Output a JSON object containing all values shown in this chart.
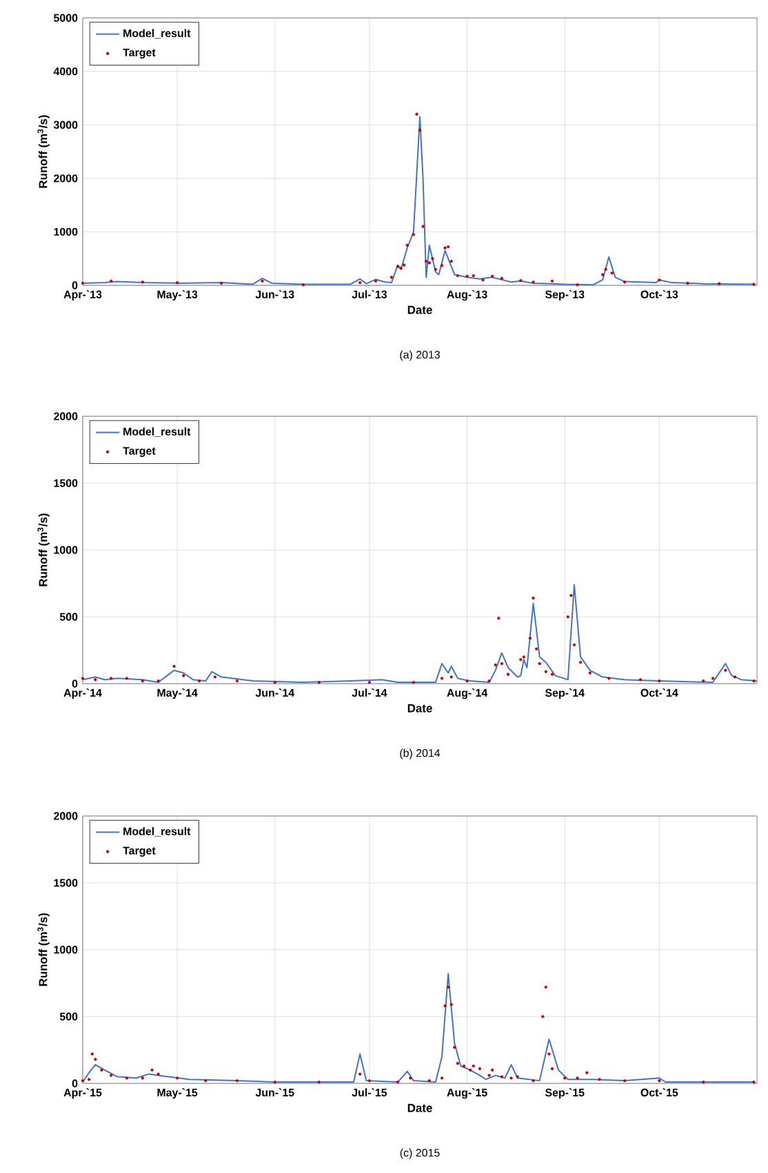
{
  "chart_data": [
    {
      "type": "line",
      "xlabel": "Date",
      "ylabel": "Runoff (m$^{3}$/s)",
      "annotations": [
        "(a) 2013"
      ],
      "xlim": [
        "2013-04-01",
        "2013-11-01"
      ],
      "xticks": [
        {
          "value": "2013-04-01",
          "label": "Apr-`13"
        },
        {
          "value": "2013-05-01",
          "label": "May-`13"
        },
        {
          "value": "2013-06-01",
          "label": "Jun-`13"
        },
        {
          "value": "2013-07-01",
          "label": "Jul-`13"
        },
        {
          "value": "2013-08-01",
          "label": "Aug-`13"
        },
        {
          "value": "2013-09-01",
          "label": "Sep-`13"
        },
        {
          "value": "2013-10-01",
          "label": "Oct-`13"
        }
      ],
      "ylim": [
        0,
        5000
      ],
      "yticks": [
        0,
        1000,
        2000,
        3000,
        4000,
        5000
      ],
      "grid": true,
      "legend": "top left",
      "series": [
        {
          "name": "Model_result",
          "type": "line",
          "color": "#4472c4",
          "marker": "none",
          "line_style": "solid",
          "x": [
            "2013-04-01",
            "2013-04-08",
            "2013-04-12",
            "2013-04-20",
            "2013-05-01",
            "2013-05-15",
            "2013-05-25",
            "2013-05-28",
            "2013-05-31",
            "2013-06-10",
            "2013-06-25",
            "2013-06-28",
            "2013-06-30",
            "2013-07-03",
            "2013-07-06",
            "2013-07-08",
            "2013-07-10",
            "2013-07-11",
            "2013-07-13",
            "2013-07-15",
            "2013-07-17",
            "2013-07-18",
            "2013-07-19",
            "2013-07-20",
            "2013-07-21",
            "2013-07-22",
            "2013-07-23",
            "2013-07-25",
            "2013-07-26",
            "2013-07-28",
            "2013-08-01",
            "2013-08-05",
            "2013-08-09",
            "2013-08-15",
            "2013-08-18",
            "2013-08-22",
            "2013-08-28",
            "2013-09-01",
            "2013-09-10",
            "2013-09-13",
            "2013-09-15",
            "2013-09-17",
            "2013-09-20",
            "2013-09-30",
            "2013-10-01",
            "2013-10-05",
            "2013-10-15",
            "2013-10-31"
          ],
          "values": [
            40,
            50,
            70,
            50,
            40,
            50,
            20,
            130,
            40,
            20,
            20,
            120,
            30,
            110,
            60,
            50,
            380,
            300,
            700,
            1000,
            3150,
            2000,
            150,
            750,
            500,
            250,
            200,
            650,
            500,
            200,
            150,
            120,
            150,
            60,
            80,
            40,
            30,
            20,
            10,
            100,
            530,
            150,
            70,
            50,
            100,
            50,
            30,
            20
          ]
        },
        {
          "name": "Target",
          "type": "scatter",
          "color": "#c00000",
          "marker": "circle",
          "x": [
            "2013-04-01",
            "2013-04-10",
            "2013-04-20",
            "2013-05-01",
            "2013-05-15",
            "2013-05-28",
            "2013-06-10",
            "2013-06-28",
            "2013-07-03",
            "2013-07-08",
            "2013-07-10",
            "2013-07-11",
            "2013-07-12",
            "2013-07-13",
            "2013-07-15",
            "2013-07-16",
            "2013-07-17",
            "2013-07-18",
            "2013-07-19",
            "2013-07-20",
            "2013-07-21",
            "2013-07-22",
            "2013-07-24",
            "2013-07-25",
            "2013-07-26",
            "2013-07-27",
            "2013-07-29",
            "2013-08-01",
            "2013-08-03",
            "2013-08-06",
            "2013-08-09",
            "2013-08-12",
            "2013-08-18",
            "2013-08-22",
            "2013-08-28",
            "2013-09-05",
            "2013-09-13",
            "2013-09-14",
            "2013-09-16",
            "2013-09-20",
            "2013-10-01",
            "2013-10-10",
            "2013-10-20",
            "2013-10-31"
          ],
          "values": [
            40,
            80,
            60,
            50,
            40,
            80,
            10,
            50,
            80,
            150,
            350,
            320,
            380,
            750,
            950,
            3200,
            2900,
            1100,
            450,
            420,
            500,
            300,
            370,
            700,
            720,
            450,
            180,
            170,
            180,
            100,
            170,
            130,
            90,
            60,
            80,
            10,
            200,
            300,
            230,
            60,
            100,
            40,
            30,
            20
          ]
        }
      ]
    },
    {
      "type": "line",
      "xlabel": "Date",
      "ylabel": "Runoff (m$^{3}$/s)",
      "annotations": [
        "(b) 2014"
      ],
      "xlim": [
        "2014-04-01",
        "2014-11-01"
      ],
      "xticks": [
        {
          "value": "2014-04-01",
          "label": "Apr-`14"
        },
        {
          "value": "2014-05-01",
          "label": "May-`14"
        },
        {
          "value": "2014-06-01",
          "label": "Jun-`14"
        },
        {
          "value": "2014-07-01",
          "label": "Jul-`14"
        },
        {
          "value": "2014-08-01",
          "label": "Aug-`14"
        },
        {
          "value": "2014-09-01",
          "label": "Sep-`14"
        },
        {
          "value": "2014-10-01",
          "label": "Oct-`14"
        }
      ],
      "ylim": [
        0,
        2000
      ],
      "yticks": [
        0,
        500,
        1000,
        1500,
        2000
      ],
      "grid": true,
      "legend": "top left",
      "series": [
        {
          "name": "Model_result",
          "type": "line",
          "color": "#4472c4",
          "marker": "none",
          "line_style": "solid",
          "x": [
            "2014-04-01",
            "2014-04-05",
            "2014-04-08",
            "2014-04-12",
            "2014-04-20",
            "2014-04-25",
            "2014-04-30",
            "2014-05-03",
            "2014-05-06",
            "2014-05-10",
            "2014-05-12",
            "2014-05-15",
            "2014-05-25",
            "2014-06-10",
            "2014-06-25",
            "2014-07-05",
            "2014-07-10",
            "2014-07-22",
            "2014-07-24",
            "2014-07-26",
            "2014-07-27",
            "2014-07-29",
            "2014-08-02",
            "2014-08-08",
            "2014-08-10",
            "2014-08-12",
            "2014-08-14",
            "2014-08-17",
            "2014-08-18",
            "2014-08-19",
            "2014-08-20",
            "2014-08-22",
            "2014-08-24",
            "2014-08-26",
            "2014-08-29",
            "2014-09-02",
            "2014-09-04",
            "2014-09-06",
            "2014-09-09",
            "2014-09-13",
            "2014-09-20",
            "2014-10-01",
            "2014-10-18",
            "2014-10-22",
            "2014-10-24",
            "2014-10-27",
            "2014-11-01"
          ],
          "values": [
            30,
            50,
            30,
            40,
            30,
            10,
            100,
            80,
            30,
            20,
            90,
            50,
            20,
            10,
            20,
            30,
            10,
            10,
            150,
            80,
            130,
            40,
            20,
            10,
            100,
            230,
            120,
            50,
            60,
            180,
            120,
            600,
            200,
            160,
            60,
            30,
            740,
            200,
            100,
            50,
            30,
            20,
            10,
            150,
            60,
            30,
            20
          ]
        },
        {
          "name": "Target",
          "type": "scatter",
          "color": "#c00000",
          "marker": "circle",
          "x": [
            "2014-04-01",
            "2014-04-05",
            "2014-04-10",
            "2014-04-15",
            "2014-04-20",
            "2014-04-25",
            "2014-04-30",
            "2014-05-03",
            "2014-05-08",
            "2014-05-13",
            "2014-05-20",
            "2014-06-01",
            "2014-06-15",
            "2014-07-01",
            "2014-07-15",
            "2014-07-24",
            "2014-07-27",
            "2014-08-01",
            "2014-08-08",
            "2014-08-10",
            "2014-08-11",
            "2014-08-12",
            "2014-08-14",
            "2014-08-18",
            "2014-08-19",
            "2014-08-21",
            "2014-08-22",
            "2014-08-23",
            "2014-08-24",
            "2014-08-26",
            "2014-08-28",
            "2014-09-02",
            "2014-09-03",
            "2014-09-04",
            "2014-09-06",
            "2014-09-09",
            "2014-09-15",
            "2014-09-25",
            "2014-10-01",
            "2014-10-15",
            "2014-10-18",
            "2014-10-22",
            "2014-10-25",
            "2014-10-31"
          ],
          "values": [
            40,
            30,
            40,
            40,
            20,
            20,
            130,
            60,
            20,
            50,
            20,
            10,
            10,
            10,
            10,
            40,
            50,
            20,
            20,
            140,
            490,
            150,
            70,
            180,
            200,
            340,
            640,
            260,
            150,
            90,
            70,
            500,
            660,
            290,
            160,
            80,
            40,
            30,
            20,
            20,
            40,
            100,
            50,
            20
          ]
        }
      ]
    },
    {
      "type": "line",
      "xlabel": "Date",
      "ylabel": "Runoff (m$^{3}$/s)",
      "annotations": [
        "(c) 2015"
      ],
      "xlim": [
        "2015-04-01",
        "2015-11-01"
      ],
      "xticks": [
        {
          "value": "2015-04-01",
          "label": "Apr-`15"
        },
        {
          "value": "2015-05-01",
          "label": "May-`15"
        },
        {
          "value": "2015-06-01",
          "label": "Jun-`15"
        },
        {
          "value": "2015-07-01",
          "label": "Jul-`15"
        },
        {
          "value": "2015-08-01",
          "label": "Aug-`15"
        },
        {
          "value": "2015-09-01",
          "label": "Sep-`15"
        },
        {
          "value": "2015-10-01",
          "label": "Oct-`15"
        }
      ],
      "ylim": [
        0,
        2000
      ],
      "yticks": [
        0,
        500,
        1000,
        1500,
        2000
      ],
      "grid": true,
      "legend": "top left",
      "series": [
        {
          "name": "Model_result",
          "type": "line",
          "color": "#4472c4",
          "marker": "none",
          "line_style": "solid",
          "x": [
            "2015-04-01",
            "2015-04-03",
            "2015-04-05",
            "2015-04-08",
            "2015-04-12",
            "2015-04-18",
            "2015-04-22",
            "2015-04-28",
            "2015-05-05",
            "2015-05-20",
            "2015-06-01",
            "2015-06-20",
            "2015-06-26",
            "2015-06-28",
            "2015-06-30",
            "2015-07-10",
            "2015-07-13",
            "2015-07-15",
            "2015-07-22",
            "2015-07-24",
            "2015-07-26",
            "2015-07-28",
            "2015-07-30",
            "2015-08-02",
            "2015-08-05",
            "2015-08-07",
            "2015-08-10",
            "2015-08-13",
            "2015-08-15",
            "2015-08-17",
            "2015-08-24",
            "2015-08-27",
            "2015-08-30",
            "2015-09-02",
            "2015-09-10",
            "2015-09-20",
            "2015-10-01",
            "2015-10-03",
            "2015-10-31"
          ],
          "values": [
            10,
            80,
            140,
            100,
            50,
            40,
            70,
            50,
            30,
            20,
            10,
            10,
            10,
            220,
            20,
            10,
            90,
            20,
            10,
            200,
            820,
            300,
            130,
            100,
            60,
            30,
            60,
            40,
            140,
            40,
            20,
            330,
            100,
            30,
            30,
            20,
            40,
            10,
            10
          ]
        },
        {
          "name": "Target",
          "type": "scatter",
          "color": "#c00000",
          "marker": "circle",
          "x": [
            "2015-04-01",
            "2015-04-03",
            "2015-04-04",
            "2015-04-05",
            "2015-04-07",
            "2015-04-10",
            "2015-04-15",
            "2015-04-20",
            "2015-04-23",
            "2015-04-25",
            "2015-05-01",
            "2015-05-10",
            "2015-05-20",
            "2015-06-01",
            "2015-06-15",
            "2015-06-28",
            "2015-07-01",
            "2015-07-10",
            "2015-07-14",
            "2015-07-20",
            "2015-07-24",
            "2015-07-25",
            "2015-07-26",
            "2015-07-27",
            "2015-07-28",
            "2015-07-29",
            "2015-07-31",
            "2015-08-02",
            "2015-08-03",
            "2015-08-05",
            "2015-08-08",
            "2015-08-09",
            "2015-08-12",
            "2015-08-15",
            "2015-08-17",
            "2015-08-22",
            "2015-08-25",
            "2015-08-26",
            "2015-08-27",
            "2015-08-28",
            "2015-09-01",
            "2015-09-05",
            "2015-09-08",
            "2015-09-12",
            "2015-09-20",
            "2015-10-01",
            "2015-10-15",
            "2015-10-31"
          ],
          "values": [
            20,
            30,
            220,
            180,
            100,
            60,
            40,
            40,
            100,
            70,
            40,
            20,
            20,
            10,
            10,
            70,
            20,
            10,
            40,
            20,
            40,
            580,
            720,
            590,
            270,
            150,
            130,
            100,
            130,
            110,
            60,
            100,
            50,
            40,
            50,
            20,
            500,
            720,
            220,
            110,
            40,
            40,
            80,
            30,
            20,
            20,
            10,
            10
          ]
        }
      ]
    }
  ]
}
